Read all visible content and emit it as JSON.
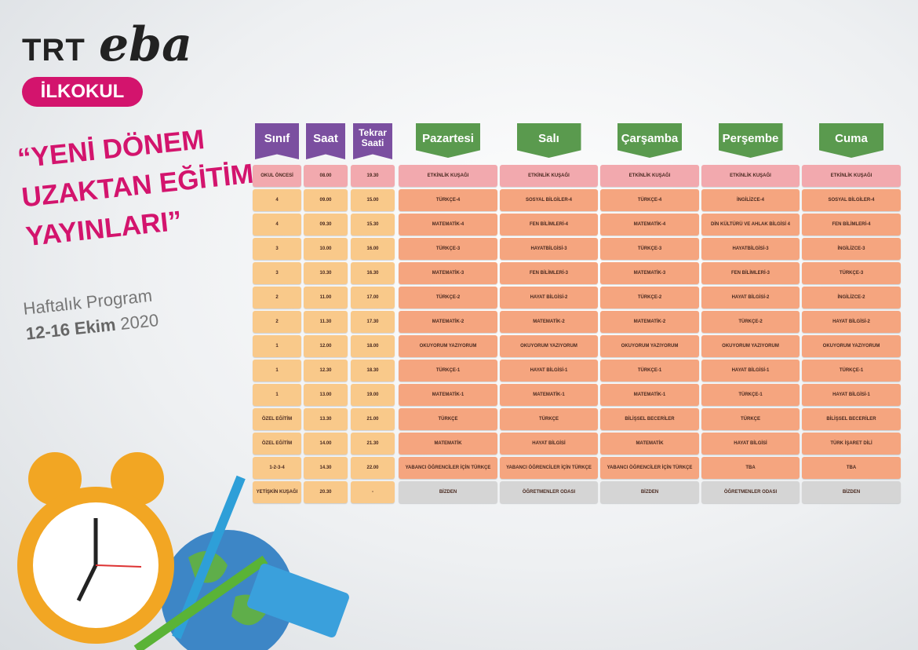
{
  "header": {
    "brand": "TRT",
    "brand_script": "eba",
    "badge": "İLKOKUL"
  },
  "headline": {
    "lines": [
      "“YENİ DÖNEM",
      "UZAKTAN EĞİTİM",
      "YAYINLARI”"
    ],
    "subtitle": "Haftalık Program",
    "date_bold": "12-16 Ekim",
    "date_year": "2020"
  },
  "table": {
    "headers": [
      "Sınıf",
      "Saat",
      "Tekrar Saati",
      "Pazartesi",
      "Salı",
      "Çarşamba",
      "Perşembe",
      "Cuma"
    ],
    "rows": [
      [
        "OKUL ÖNCESİ",
        "08.00",
        "19.30",
        "ETKİNLİK KUŞAĞI",
        "ETKİNLİK KUŞAĞI",
        "ETKİNLİK KUŞAĞI",
        "ETKİNLİK KUŞAĞI",
        "ETKİNLİK KUŞAĞI"
      ],
      [
        "4",
        "09.00",
        "15.00",
        "TÜRKÇE-4",
        "SOSYAL BİLGİLER-4",
        "TÜRKÇE-4",
        "İNGİLİZCE-4",
        "SOSYAL BİLGİLER-4"
      ],
      [
        "4",
        "09.30",
        "15.30",
        "MATEMATİK-4",
        "FEN BİLİMLERİ-4",
        "MATEMATİK-4",
        "DİN KÜLTÜRÜ VE AHLAK BİLGİSİ 4",
        "FEN BİLİMLERİ-4"
      ],
      [
        "3",
        "10.00",
        "16.00",
        "TÜRKÇE-3",
        "HAYATBİLGİSİ-3",
        "TÜRKÇE-3",
        "HAYATBİLGİSİ-3",
        "İNGİLİZCE-3"
      ],
      [
        "3",
        "10.30",
        "16.30",
        "MATEMATİK-3",
        "FEN BİLİMLERİ-3",
        "MATEMATİK-3",
        "FEN BİLİMLERİ-3",
        "TÜRKÇE-3"
      ],
      [
        "2",
        "11.00",
        "17.00",
        "TÜRKÇE-2",
        "HAYAT BİLGİSİ-2",
        "TÜRKÇE-2",
        "HAYAT BİLGİSİ-2",
        "İNGİLİZCE-2"
      ],
      [
        "2",
        "11.30",
        "17.30",
        "MATEMATİK-2",
        "MATEMATİK-2",
        "MATEMATİK-2",
        "TÜRKÇE-2",
        "HAYAT BİLGİSİ-2"
      ],
      [
        "1",
        "12.00",
        "18.00",
        "OKUYORUM YAZIYORUM",
        "OKUYORUM YAZIYORUM",
        "OKUYORUM YAZIYORUM",
        "OKUYORUM YAZIYORUM",
        "OKUYORUM YAZIYORUM"
      ],
      [
        "1",
        "12.30",
        "18.30",
        "TÜRKÇE-1",
        "HAYAT BİLGİSİ-1",
        "TÜRKÇE-1",
        "HAYAT BİLGİSİ-1",
        "TÜRKÇE-1"
      ],
      [
        "1",
        "13.00",
        "19.00",
        "MATEMATİK-1",
        "MATEMATİK-1",
        "MATEMATİK-1",
        "TÜRKÇE-1",
        "HAYAT BİLGİSİ-1"
      ],
      [
        "ÖZEL EĞİTİM",
        "13.30",
        "21.00",
        "TÜRKÇE",
        "TÜRKÇE",
        "BİLİŞSEL BECERİLER",
        "TÜRKÇE",
        "BİLİŞSEL BECERİLER"
      ],
      [
        "ÖZEL EĞİTİM",
        "14.00",
        "21.30",
        "MATEMATİK",
        "HAYAT BİLGİSİ",
        "MATEMATİK",
        "HAYAT BİLGİSİ",
        "TÜRK İŞARET DİLİ"
      ],
      [
        "1-2-3-4",
        "14.30",
        "22.00",
        "YABANCI ÖĞRENCİLER İÇİN TÜRKÇE",
        "YABANCI ÖĞRENCİLER İÇİN TÜRKÇE",
        "YABANCI ÖĞRENCİLER İÇİN TÜRKÇE",
        "TBA",
        "TBA"
      ],
      [
        "YETİŞKİN KUŞAĞI",
        "20.30",
        "-",
        "BİZDEN",
        "ÖĞRETMENLER ODASI",
        "BİZDEN",
        "ÖĞRETMENLER ODASI",
        "BİZDEN"
      ]
    ]
  }
}
